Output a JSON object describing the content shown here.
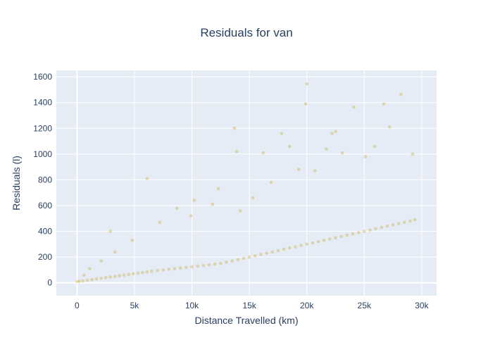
{
  "chart_data": {
    "type": "scatter",
    "title": "Residuals for van",
    "xlabel": "Distance Travelled (km)",
    "ylabel": "Residuals (l)",
    "xlim": [
      -1800,
      31300
    ],
    "ylim": [
      -100,
      1650
    ],
    "x_ticks": [
      0,
      5000,
      10000,
      15000,
      20000,
      25000,
      30000
    ],
    "x_tick_labels": [
      "0",
      "5k",
      "10k",
      "15k",
      "20k",
      "25k",
      "30k"
    ],
    "y_ticks": [
      0,
      200,
      400,
      600,
      800,
      1000,
      1200,
      1400,
      1600
    ],
    "y_tick_labels": [
      "0",
      "200",
      "400",
      "600",
      "800",
      "1000",
      "1200",
      "1400",
      "1600"
    ],
    "grid": true,
    "series": [
      {
        "name": "van",
        "color": "#c9a227",
        "opacity": 0.35,
        "x": [
          0,
          200,
          500,
          900,
          1300,
          1700,
          2100,
          2500,
          2900,
          3300,
          3700,
          4100,
          4500,
          4900,
          5300,
          5700,
          6100,
          6500,
          7000,
          7500,
          8000,
          8500,
          9000,
          9500,
          10000,
          10500,
          11000,
          11500,
          12000,
          12500,
          13000,
          13500,
          14000,
          14500,
          15000,
          15500,
          16000,
          16500,
          17000,
          17500,
          18000,
          18500,
          19000,
          19500,
          20000,
          20500,
          21000,
          21500,
          22000,
          22500,
          23000,
          23500,
          24000,
          24500,
          25000,
          25500,
          26000,
          26500,
          27000,
          27500,
          28000,
          28500,
          29000,
          29400,
          2900,
          6100,
          13700,
          13900,
          16200,
          17800,
          18500,
          19900,
          20000,
          22200,
          22500,
          24100,
          25100,
          26700,
          27200,
          28200,
          29200,
          21700,
          23100,
          25900,
          19300,
          15300,
          14200,
          12300,
          10200,
          8700,
          7200,
          4800,
          3300,
          2100,
          1100,
          600,
          9900,
          11800,
          16900,
          20700
        ],
        "y": [
          10,
          12,
          15,
          20,
          25,
          30,
          35,
          40,
          45,
          50,
          55,
          60,
          65,
          70,
          75,
          80,
          85,
          90,
          95,
          100,
          105,
          110,
          115,
          120,
          125,
          130,
          135,
          140,
          145,
          150,
          160,
          170,
          180,
          190,
          200,
          210,
          220,
          230,
          240,
          250,
          260,
          270,
          280,
          290,
          300,
          310,
          320,
          330,
          340,
          350,
          360,
          370,
          380,
          390,
          400,
          410,
          420,
          430,
          440,
          450,
          460,
          470,
          480,
          490,
          400,
          810,
          1200,
          1020,
          1010,
          1160,
          1060,
          1390,
          1545,
          1160,
          1175,
          1365,
          980,
          1390,
          1210,
          1465,
          1000,
          1040,
          1010,
          1060,
          880,
          660,
          560,
          730,
          640,
          580,
          470,
          330,
          240,
          170,
          110,
          60,
          520,
          610,
          780,
          870
        ]
      }
    ]
  }
}
